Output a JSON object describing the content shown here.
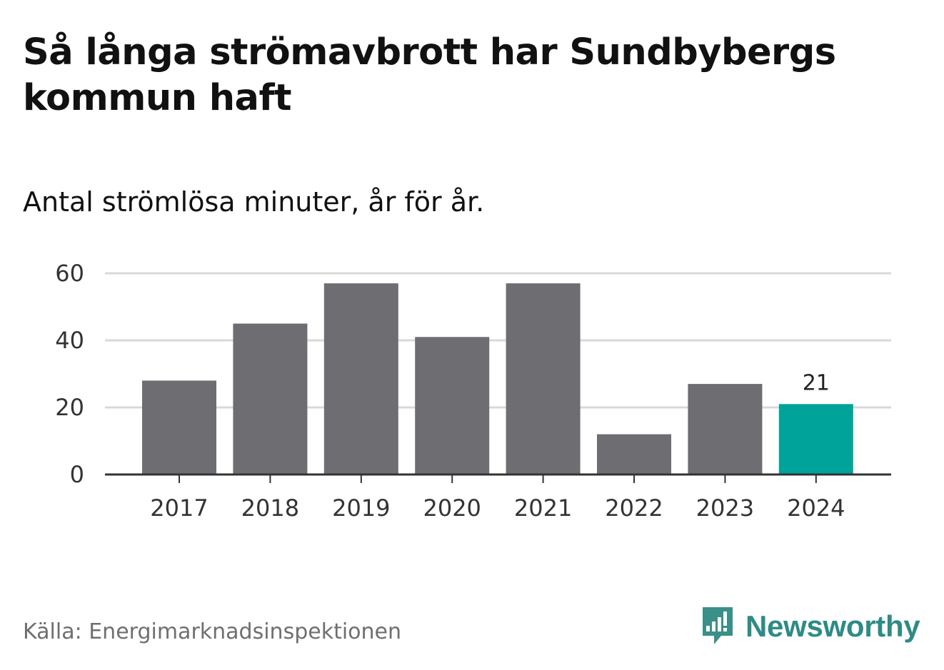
{
  "title": "Så långa strömavbrott har Sundbybergs kommun haft",
  "subtitle": "Antal strömlösa minuter, år för år.",
  "source": "Källa: Energimarknadsinspektionen",
  "brand": {
    "name": "Newsworthy",
    "icon": "newsworthy-logo-icon",
    "color": "#3a8f89"
  },
  "colors": {
    "bar": "#6e6d72",
    "highlight": "#00a39a",
    "grid": "#d9d9d9",
    "axis": "#333333"
  },
  "chart_data": {
    "type": "bar",
    "title": "Så långa strömavbrott har Sundbybergs kommun haft",
    "subtitle": "Antal strömlösa minuter, år för år.",
    "xlabel": "",
    "ylabel": "",
    "categories": [
      "2017",
      "2018",
      "2019",
      "2020",
      "2021",
      "2022",
      "2023",
      "2024"
    ],
    "values": [
      28,
      45,
      57,
      41,
      57,
      12,
      27,
      21
    ],
    "ylim": [
      0,
      60
    ],
    "yticks": [
      0,
      20,
      40,
      60
    ],
    "highlight_index": 7,
    "data_labels": [
      {
        "index": 7,
        "text": "21"
      }
    ],
    "grid": true,
    "legend": "none"
  }
}
